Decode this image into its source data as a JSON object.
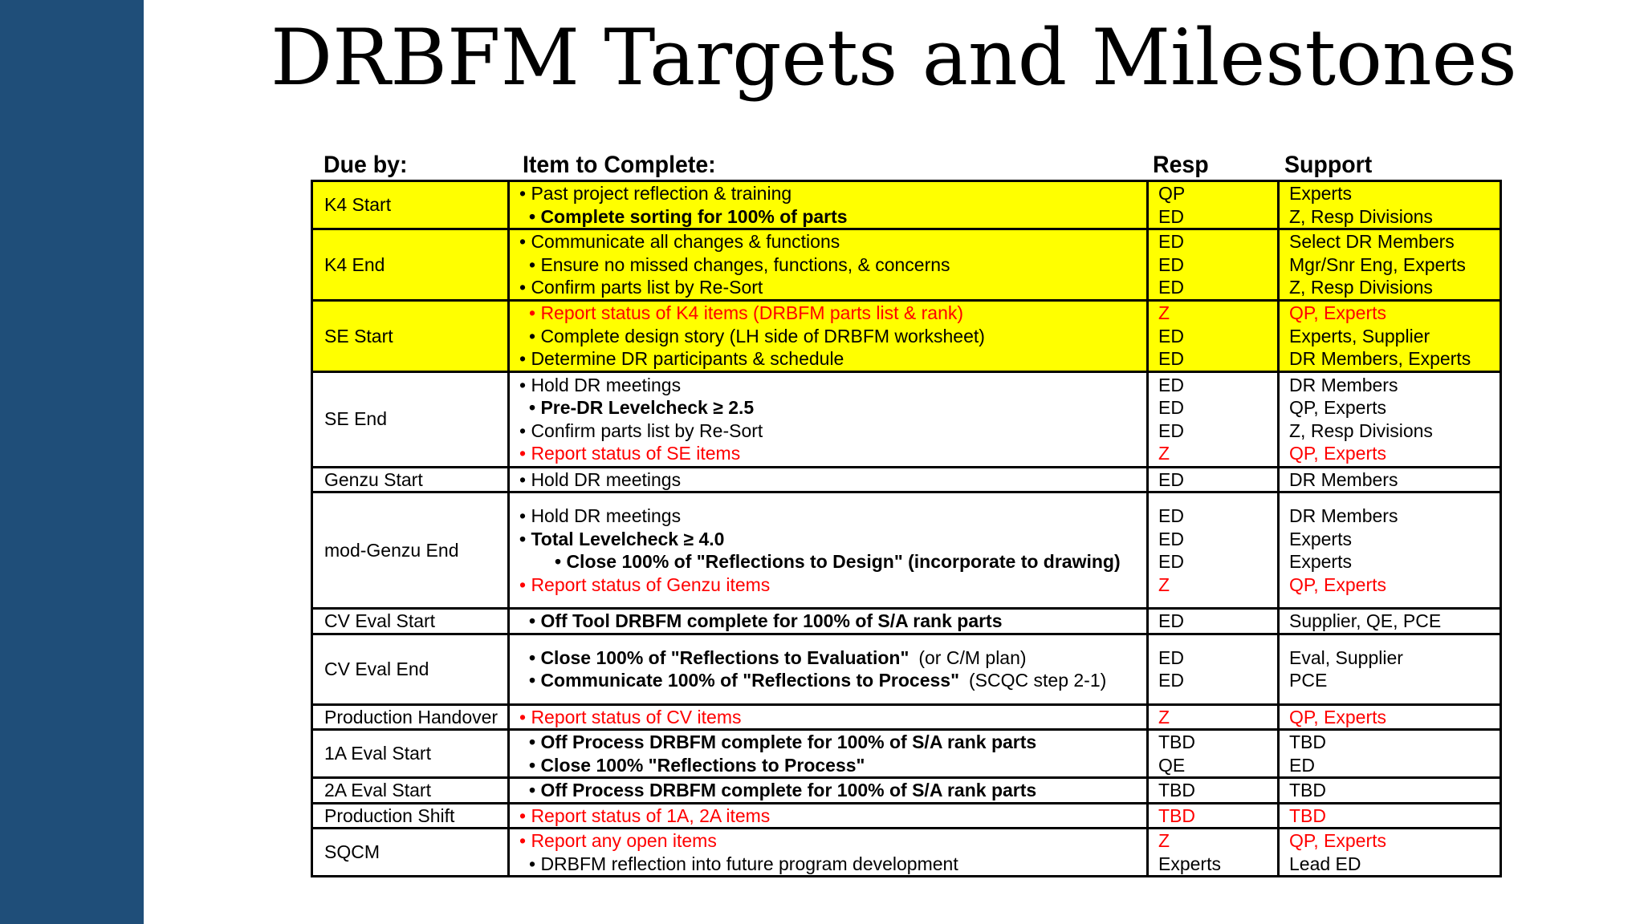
{
  "title": "DRBFM Targets and Milestones",
  "headers": {
    "due": "Due by:",
    "item": "Item to Complete:",
    "resp": "Resp",
    "support": "Support"
  },
  "colors": {
    "sidebar": "#1f4e79",
    "highlight": "#ffff00",
    "red_text": "#ff0000"
  },
  "rows": [
    {
      "due": "K4 Start",
      "highlight": true,
      "lines": [
        {
          "item": "• Past project reflection & training",
          "resp": "QP",
          "support": "Experts"
        },
        {
          "item": "• Complete sorting for 100% of parts",
          "resp": "ED",
          "support": "Z, Resp Divisions",
          "bold": true,
          "indent": 1
        }
      ]
    },
    {
      "due": "K4 End",
      "highlight": true,
      "lines": [
        {
          "item": "• Communicate all changes & functions",
          "resp": "ED",
          "support": "Select DR Members"
        },
        {
          "item": "• Ensure no missed changes, functions, & concerns",
          "resp": "ED",
          "support": "Mgr/Snr Eng, Experts",
          "indent": 1
        },
        {
          "item": "• Confirm parts list by Re-Sort",
          "resp": "ED",
          "support": "Z, Resp Divisions"
        }
      ]
    },
    {
      "due": "SE Start",
      "highlight": true,
      "lines": [
        {
          "item": "• Report status of K4 items (DRBFM parts list & rank)",
          "resp": "Z",
          "support": "QP, Experts",
          "red": true,
          "indent": 1
        },
        {
          "item": "• Complete design story (LH side of DRBFM worksheet)",
          "resp": "ED",
          "support": "Experts, Supplier",
          "indent": 1
        },
        {
          "item": "• Determine DR participants & schedule",
          "resp": "ED",
          "support": "DR Members, Experts"
        }
      ]
    },
    {
      "due": "SE End",
      "lines": [
        {
          "item": "• Hold DR meetings",
          "resp": "ED",
          "support": "DR Members"
        },
        {
          "item": "• Pre-DR Levelcheck ≥ 2.5",
          "resp": "ED",
          "support": "QP, Experts",
          "bold": true,
          "indent": 1
        },
        {
          "item": "• Confirm parts list by Re-Sort",
          "resp": "ED",
          "support": "Z, Resp Divisions"
        },
        {
          "item": "• Report status of SE items",
          "resp": "Z",
          "support": "QP, Experts",
          "red": true
        }
      ]
    },
    {
      "due": "Genzu Start",
      "lines": [
        {
          "item": "• Hold DR meetings",
          "resp": "ED",
          "support": "DR Members"
        }
      ]
    },
    {
      "due": "mod-Genzu End",
      "lines": [
        {
          "item": "• Hold DR meetings",
          "resp": "ED",
          "support": "DR Members"
        },
        {
          "item": "• Total Levelcheck ≥ 4.0",
          "resp": "ED",
          "support": "Experts",
          "bold": true
        },
        {
          "item": "• Close 100% of \"Reflections to Design\" (incorporate to drawing)",
          "resp": "ED",
          "support": "Experts",
          "bold": true,
          "indent": 2
        },
        {
          "item": "•   Report status of Genzu items",
          "resp": "Z",
          "support": "QP, Experts",
          "red": true
        }
      ]
    },
    {
      "due": "CV Eval Start",
      "lines": [
        {
          "item": "• Off Tool DRBFM complete for 100% of S/A rank parts",
          "resp": "ED",
          "support": "Supplier, QE, PCE",
          "bold": true,
          "indent": 1
        }
      ]
    },
    {
      "due": "CV Eval End",
      "lines": [
        {
          "item": "• Close 100% of \"Reflections to Evaluation\"",
          "note": "(or C/M plan)",
          "resp": "ED",
          "support": "Eval, Supplier",
          "bold": true,
          "indent": 1
        },
        {
          "item": "• Communicate 100% of \"Reflections to Process\"",
          "note": "(SCQC step 2-1)",
          "resp": "ED",
          "support": "PCE",
          "bold": true,
          "indent": 1
        }
      ]
    },
    {
      "due": "Production Handover",
      "lines": [
        {
          "item": "• Report status of CV items",
          "resp": "Z",
          "support": "QP, Experts",
          "red": true
        }
      ]
    },
    {
      "due": "1A Eval Start",
      "lines": [
        {
          "item": "• Off Process DRBFM complete for 100% of S/A rank parts",
          "resp": "TBD",
          "support": "TBD",
          "bold": true,
          "indent": 1
        },
        {
          "item": "• Close 100% \"Reflections to Process\"",
          "resp": "QE",
          "support": "ED",
          "bold": true,
          "indent": 1
        }
      ]
    },
    {
      "due": "2A Eval Start",
      "lines": [
        {
          "item": "• Off Process DRBFM complete for 100% of S/A rank parts",
          "resp": "TBD",
          "support": "TBD",
          "bold": true,
          "indent": 1
        }
      ]
    },
    {
      "due": "Production Shift",
      "lines": [
        {
          "item": "• Report status of 1A, 2A items",
          "resp": "TBD",
          "support": "TBD",
          "red": true
        }
      ]
    },
    {
      "due": "SQCM",
      "lines": [
        {
          "item": "• Report any open items",
          "resp": "Z",
          "support": "QP, Experts",
          "red": true
        },
        {
          "item": "• DRBFM reflection into future program development",
          "resp": "Experts",
          "support": "Lead ED",
          "indent": 1
        }
      ]
    }
  ]
}
